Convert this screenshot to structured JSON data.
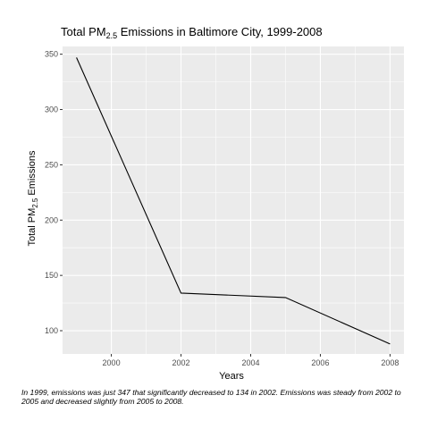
{
  "chart_data": {
    "type": "line",
    "title": "Total PM",
    "title_subscript": "2.5",
    "title_suffix": " Emissions in Baltimore City, 1999-2008",
    "xlabel": "Years",
    "ylabel": "Total PM",
    "ylabel_subscript": "2.5",
    "ylabel_suffix": " Emissions",
    "x": [
      1999,
      2002,
      2005,
      2008
    ],
    "y": [
      347,
      134,
      130,
      88
    ],
    "xlim": [
      1998.6,
      2008.4
    ],
    "ylim": [
      79,
      357
    ],
    "x_ticks": [
      2000,
      2002,
      2004,
      2006,
      2008
    ],
    "y_ticks": [
      100,
      150,
      200,
      250,
      300,
      350
    ],
    "grid": true,
    "line_color": "#000000",
    "panel_background": "#ebebeb",
    "grid_color": "#ffffff"
  },
  "caption": "In 1999, emissions was just 347 that significantly decreased to 134 in 2002. Emissions was steady from 2002 to 2005 and decreased slightly from 2005 to 2008."
}
